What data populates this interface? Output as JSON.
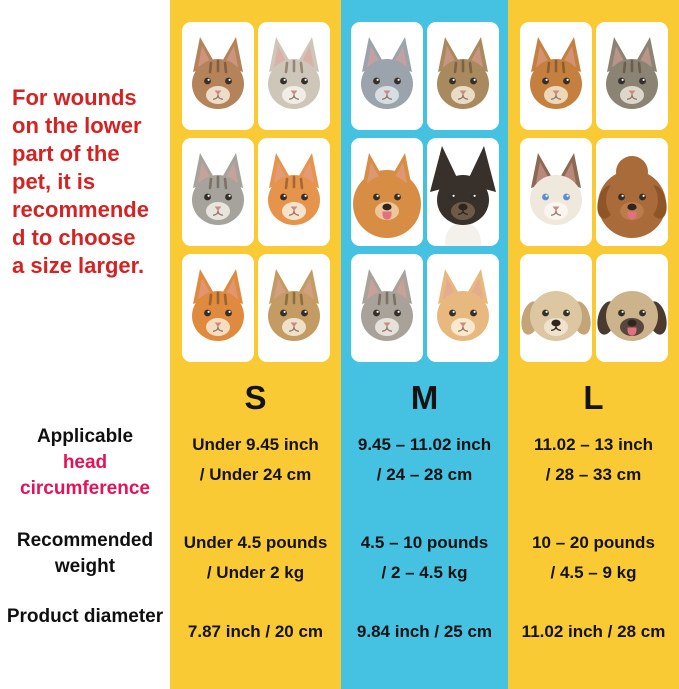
{
  "note_lines": [
    "For wounds",
    "on the lower",
    "part of the",
    "pet, it is",
    "recommende",
    "d to choose",
    "a size larger."
  ],
  "row_labels": {
    "applicable": "Applicable",
    "head_circumference": "head circumference",
    "weight": "Recommended weight",
    "diameter": "Product diameter"
  },
  "colors": {
    "red": "#d42322",
    "pink": "#e41359",
    "yellow": "#f9ca33",
    "cyan": "#45c1e1",
    "text": "#131313",
    "tile": "#ffffff"
  },
  "columns": [
    {
      "size": "S",
      "bg": "#f9ca33",
      "circumference": [
        "Under 9.45 inch",
        "/ Under 24 cm"
      ],
      "weight": [
        "Under 4.5 pounds",
        "/ Under 2 kg"
      ],
      "diameter": "7.87 inch / 20 cm",
      "pets": [
        {
          "name": "fluffy brown kitten",
          "kind": "cat",
          "ear": "point",
          "c": "#b5835a",
          "m": "#ecdcc8",
          "stripes": true
        },
        {
          "name": "silver tabby kitten",
          "kind": "cat",
          "ear": "point",
          "c": "#cfc6ba",
          "m": "#f1ece4",
          "stripes": true
        },
        {
          "name": "grey tabby kitten",
          "kind": "cat",
          "ear": "point",
          "c": "#a6a29c",
          "m": "#e8e4de",
          "stripes": true
        },
        {
          "name": "orange tabby kitten",
          "kind": "cat",
          "ear": "point",
          "c": "#e6934c",
          "m": "#f7e3cb",
          "stripes": true
        },
        {
          "name": "orange kitten",
          "kind": "cat",
          "ear": "point",
          "c": "#df8a3e",
          "m": "#f6ddc0",
          "stripes": true
        },
        {
          "name": "brown tabby kitten",
          "kind": "cat",
          "ear": "point",
          "c": "#c49b62",
          "m": "#efe0c8",
          "stripes": true
        }
      ]
    },
    {
      "size": "M",
      "bg": "#45c1e1",
      "circumference": [
        "9.45 – 11.02 inch",
        "/ 24 – 28 cm"
      ],
      "weight": [
        "4.5 – 10 pounds",
        "/ 2 – 4.5 kg"
      ],
      "diameter": "9.84 inch / 25 cm",
      "pets": [
        {
          "name": "grey british shorthair cat",
          "kind": "cat",
          "ear": "point",
          "c": "#9ba3ac",
          "m": "#d8dde2",
          "stripes": false
        },
        {
          "name": "brown tabby cat",
          "kind": "cat",
          "ear": "point",
          "c": "#a98a5f",
          "m": "#e9dcc4",
          "stripes": true
        },
        {
          "name": "pomeranian dog",
          "kind": "dog",
          "ear": "point",
          "c": "#d78d44",
          "m": "#edc79a",
          "fluff": true,
          "tongue": true
        },
        {
          "name": "chihuahua dog",
          "kind": "dog",
          "ear": "up",
          "c": "#38302a",
          "m": "#6e5a48",
          "chest": true
        },
        {
          "name": "grey tabby cat",
          "kind": "cat",
          "ear": "point",
          "c": "#a8a29a",
          "m": "#e6e1da",
          "stripes": true
        },
        {
          "name": "cream cat",
          "kind": "cat",
          "ear": "point",
          "c": "#e8b97e",
          "m": "#f8e8cf",
          "stripes": false
        }
      ]
    },
    {
      "size": "L",
      "bg": "#f9ca33",
      "circumference": [
        "11.02 – 13 inch",
        "/ 28 – 33 cm"
      ],
      "weight": [
        "10 – 20 pounds",
        "/ 4.5 – 9 kg"
      ],
      "diameter": "11.02 inch / 28 cm",
      "pets": [
        {
          "name": "orange maine coon cat",
          "kind": "cat",
          "ear": "point",
          "c": "#c5803f",
          "m": "#ecd7b8",
          "stripes": true
        },
        {
          "name": "grey maine coon cat",
          "kind": "cat",
          "ear": "point",
          "c": "#8b8374",
          "m": "#ddd7ca",
          "stripes": true
        },
        {
          "name": "ragdoll cat",
          "kind": "cat",
          "ear": "point",
          "c": "#efe8dc",
          "m": "#faf6ef",
          "earColor": "#8a6a52",
          "eyes": "#5b8fc7",
          "stripes": false
        },
        {
          "name": "toy poodle dog",
          "kind": "dog",
          "ear": "floppy",
          "c": "#a96b39",
          "m": "#b97c4a",
          "earDark": "#8f5527",
          "fluff": true,
          "top": true,
          "tongue": true
        },
        {
          "name": "havanese puppy dog",
          "kind": "dog",
          "ear": "floppy",
          "c": "#ddc7a3",
          "m": "#efe3cd",
          "earDark": "#c3a577"
        },
        {
          "name": "pug dog",
          "kind": "dog",
          "ear": "floppy",
          "c": "#ccb38c",
          "m": "#57463c",
          "earDark": "#4a3a30",
          "tongue": true
        }
      ]
    }
  ],
  "chart_data": {
    "type": "table",
    "title": "Pet cone size chart",
    "columns": [
      "S",
      "M",
      "L"
    ],
    "rows": [
      {
        "label": "Applicable head circumference",
        "values": [
          "Under 9.45 inch / Under 24 cm",
          "9.45 – 11.02 inch / 24 – 28 cm",
          "11.02 – 13 inch / 28 – 33 cm"
        ]
      },
      {
        "label": "Recommended weight",
        "values": [
          "Under 4.5 pounds / Under 2 kg",
          "4.5 – 10 pounds / 2 – 4.5 kg",
          "10 – 20 pounds / 4.5 – 9 kg"
        ]
      },
      {
        "label": "Product diameter",
        "values": [
          "7.87 inch / 20 cm",
          "9.84 inch / 25 cm",
          "11.02 inch / 28 cm"
        ]
      }
    ],
    "note": "For wounds on the lower part of the pet, it is recommended to choose a size larger."
  }
}
